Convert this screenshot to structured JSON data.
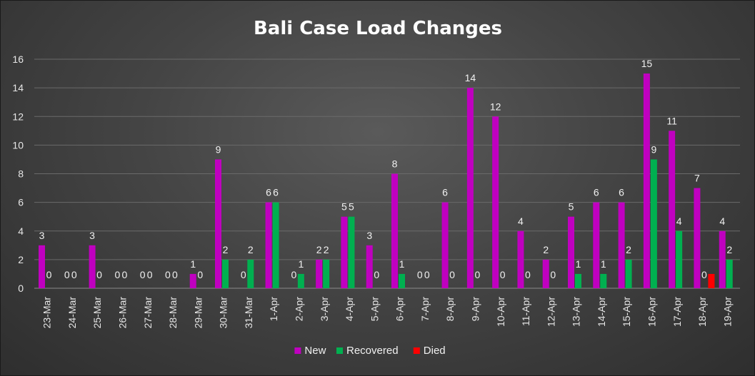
{
  "chart_data": {
    "type": "bar",
    "title": "Bali Case Load Changes",
    "categories": [
      "23-Mar",
      "24-Mar",
      "25-Mar",
      "26-Mar",
      "27-Mar",
      "28-Mar",
      "29-Mar",
      "30-Mar",
      "31-Mar",
      "1-Apr",
      "2-Apr",
      "3-Apr",
      "4-Apr",
      "5-Apr",
      "6-Apr",
      "7-Apr",
      "8-Apr",
      "9-Apr",
      "10-Apr",
      "11-Apr",
      "12-Apr",
      "13-Apr",
      "14-Apr",
      "15-Apr",
      "16-Apr",
      "17-Apr",
      "18-Apr",
      "19-Apr"
    ],
    "series": [
      {
        "name": "New",
        "color": "#c000c0",
        "values": [
          3,
          0,
          3,
          0,
          0,
          0,
          1,
          9,
          0,
          6,
          0,
          2,
          5,
          3,
          8,
          0,
          6,
          14,
          12,
          4,
          2,
          5,
          6,
          6,
          15,
          11,
          7,
          4
        ]
      },
      {
        "name": "Recovered",
        "color": "#00b050",
        "values": [
          0,
          0,
          0,
          0,
          0,
          0,
          0,
          2,
          2,
          6,
          1,
          2,
          5,
          0,
          1,
          0,
          0,
          0,
          0,
          0,
          0,
          1,
          1,
          2,
          9,
          4,
          0,
          2
        ]
      },
      {
        "name": "Died",
        "color": "#ff0000",
        "values": [
          null,
          null,
          null,
          null,
          null,
          null,
          null,
          null,
          null,
          null,
          null,
          null,
          null,
          null,
          null,
          null,
          null,
          null,
          null,
          null,
          null,
          null,
          null,
          null,
          null,
          null,
          1,
          null
        ]
      }
    ],
    "ylim": [
      0,
      16
    ],
    "yticks": [
      0,
      2,
      4,
      6,
      8,
      10,
      12,
      14,
      16
    ],
    "grid": true,
    "legend": "bottom",
    "data_labels": true
  }
}
